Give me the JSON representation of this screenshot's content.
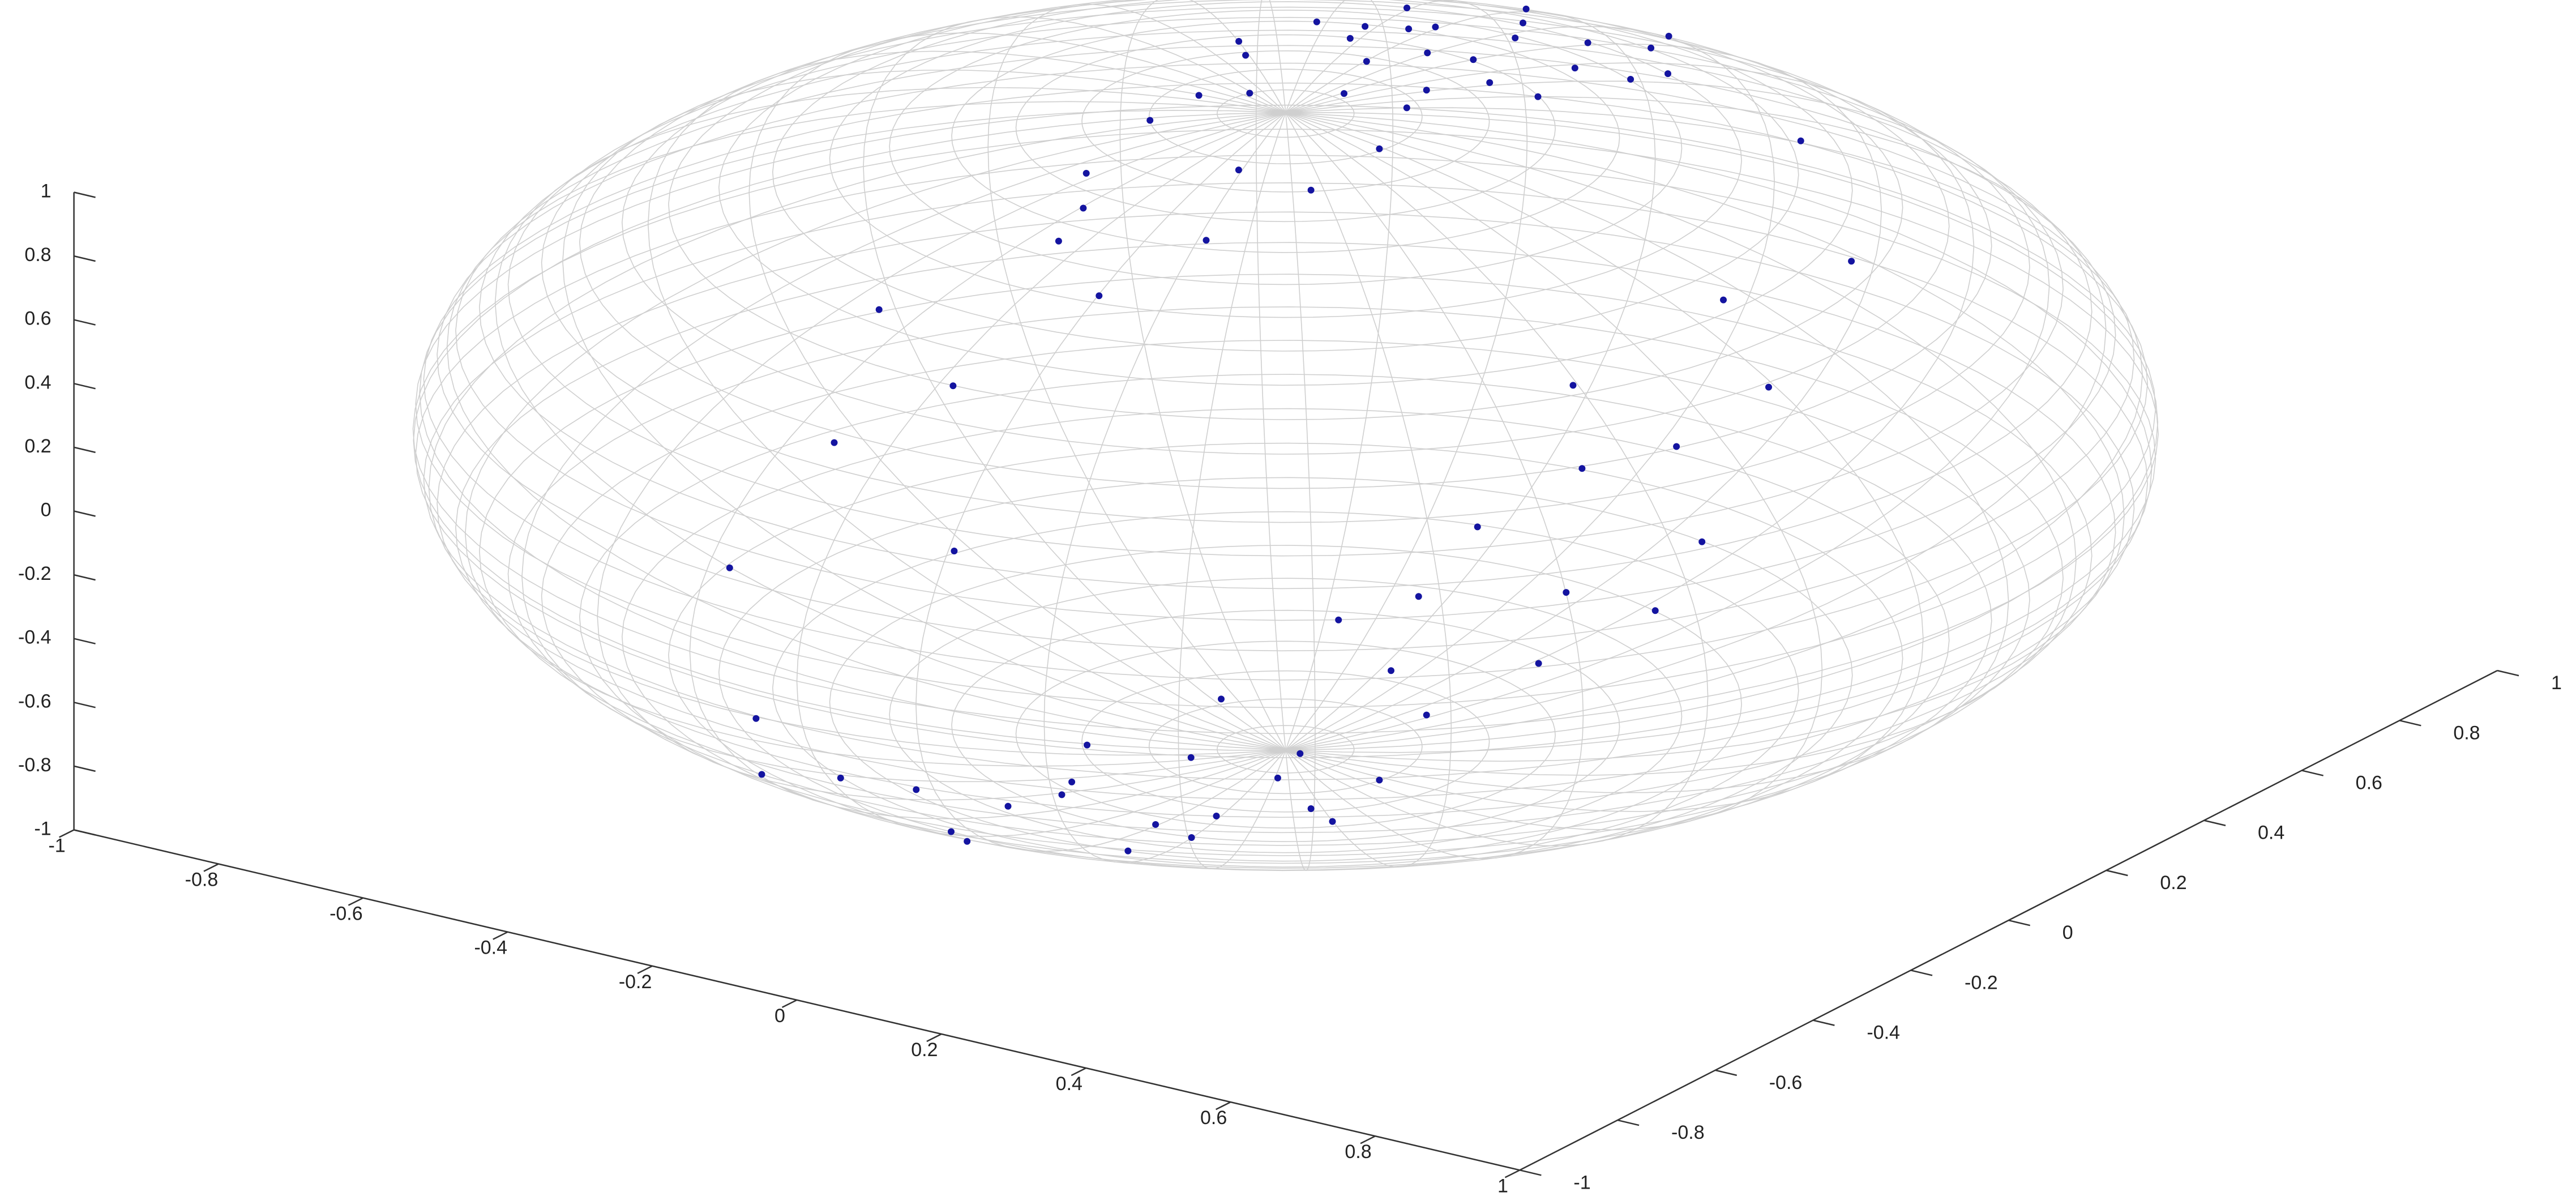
{
  "chart_data": {
    "type": "scatter3d",
    "xlim": [
      -1,
      1
    ],
    "ylim": [
      -1,
      1
    ],
    "zlim": [
      -1,
      1
    ],
    "xticks": [
      -1,
      -0.8,
      -0.6,
      -0.4,
      -0.2,
      0,
      0.2,
      0.4,
      0.6,
      0.8,
      1
    ],
    "yticks": [
      -1,
      -0.8,
      -0.6,
      -0.4,
      -0.2,
      0,
      0.2,
      0.4,
      0.6,
      0.8,
      1
    ],
    "zticks": [
      -1,
      -0.8,
      -0.6,
      -0.4,
      -0.2,
      0,
      0.2,
      0.4,
      0.6,
      0.8,
      1
    ],
    "series": [
      {
        "color": "#1414a0",
        "x": [
          0.05,
          -0.1,
          0.12,
          -0.03,
          0.08,
          -0.15,
          0.02,
          -0.07,
          0.15,
          -0.12,
          0.05,
          -0.1,
          0.12,
          -0.03,
          0.08,
          -0.15,
          0.02,
          -0.07,
          0.15,
          -0.12,
          0.05,
          -0.1,
          0.12,
          -0.03,
          0.08,
          -0.15,
          0.02,
          -0.07,
          0.15,
          -0.12,
          0.05,
          -0.1,
          0.2,
          -0.18,
          0.18,
          -0.2,
          0.1,
          -0.12,
          0,
          -0.08,
          0.15,
          -0.05,
          0.12,
          -0.03,
          0.08,
          -0.15,
          0.02,
          -0.07,
          0.15,
          -0.12,
          0.05,
          -0.1,
          0.12,
          -0.03,
          0.08,
          -0.15,
          0.02,
          -0.07,
          0.15,
          -0.12,
          0.05,
          -0.1,
          0.12,
          -0.03,
          0.08,
          -0.15,
          0.02,
          -0.07,
          0.15,
          -0.18,
          0.2,
          -0.1,
          0.12,
          -0.2,
          0.05,
          0.08,
          -0.15,
          0.18
        ],
        "y": [
          0.71,
          0.64,
          0.57,
          0.53,
          0.5,
          0.47,
          0.44,
          0.41,
          0.37,
          0.34,
          0.31,
          0.28,
          0.24,
          0.21,
          0.17,
          0.14,
          0.09,
          0.03,
          -0.03,
          -0.1,
          -0.17,
          -0.26,
          -0.34,
          -0.42,
          -0.5,
          -0.61,
          -0.71,
          -0.82,
          -0.9,
          -0.96,
          0.98,
          0.93,
          0.41,
          0.33,
          0.25,
          0.2,
          0.1,
          0,
          0.29,
          0.37,
          -0.17,
          -0.34,
          0.98,
          0.94,
          0.87,
          0.81,
          0.77,
          0.71,
          0.63,
          0.57,
          0.5,
          0.42,
          0.34,
          0.26,
          0.17,
          0.09,
          0,
          -0.09,
          -0.17,
          -0.26,
          -0.34,
          -0.42,
          -0.5,
          -0.64,
          -0.77,
          -0.85,
          -0.94,
          -0.98,
          -0.03,
          -0.14,
          -0.2,
          -0.31,
          -0.37,
          -0.46,
          -0.09,
          -0.26,
          0.33,
          0.49
        ],
        "z": [
          0.71,
          0.77,
          0.82,
          0.85,
          0.87,
          0.88,
          0.9,
          0.91,
          0.93,
          0.94,
          0.95,
          0.96,
          0.97,
          0.98,
          0.98,
          0.99,
          1,
          1,
          0.99,
          0.99,
          0.98,
          0.96,
          0.93,
          0.91,
          0.86,
          0.78,
          0.71,
          0.57,
          0.41,
          0.26,
          0.17,
          0.34,
          0.89,
          0.93,
          0.95,
          0.96,
          0.99,
          0.99,
          0.96,
          0.93,
          0.97,
          0.94,
          -0.17,
          -0.34,
          -0.5,
          -0.57,
          -0.64,
          -0.71,
          -0.76,
          -0.81,
          -0.87,
          -0.9,
          -0.93,
          -0.97,
          -0.98,
          -0.99,
          -1,
          -0.99,
          -0.97,
          -0.96,
          -0.94,
          -0.9,
          -0.86,
          -0.77,
          -0.64,
          -0.49,
          -0.34,
          -0.17,
          -0.99,
          -0.97,
          -0.96,
          -0.95,
          -0.92,
          -0.87,
          -0.99,
          -0.96,
          -0.93,
          -0.85
        ]
      }
    ]
  }
}
